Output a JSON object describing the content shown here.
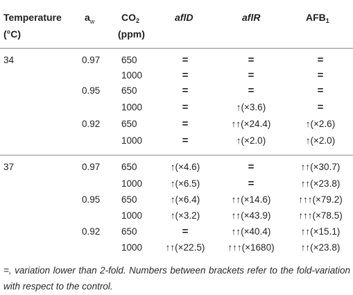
{
  "header": {
    "temperature_line1": "Temperature",
    "temperature_line2": "(°C)",
    "aw_main": "a",
    "aw_sub": "w",
    "co2_main": "CO",
    "co2_sub": "2",
    "co2_unit": "(ppm)",
    "afld": "aflD",
    "aflr": "aflR",
    "afb_main": "AFB",
    "afb_sub": "1"
  },
  "rows": [
    {
      "temp": "34",
      "aw": "0.97",
      "co2": "650",
      "afld": "=",
      "aflr": "=",
      "afb": "="
    },
    {
      "temp": "",
      "aw": "",
      "co2": "1000",
      "afld": "=",
      "aflr": "=",
      "afb": "="
    },
    {
      "temp": "",
      "aw": "0.95",
      "co2": "650",
      "afld": "=",
      "aflr": "=",
      "afb": "="
    },
    {
      "temp": "",
      "aw": "",
      "co2": "1000",
      "afld": "=",
      "aflr": "↑(×3.6)",
      "afb": "="
    },
    {
      "temp": "",
      "aw": "0.92",
      "co2": "650",
      "afld": "=",
      "aflr": "↑↑(×24.4)",
      "afb": "↑(×2.6)"
    },
    {
      "temp": "",
      "aw": "",
      "co2": "1000",
      "afld": "=",
      "aflr": "↑(×2.0)",
      "afb": "↑(×2.0)"
    },
    {
      "temp": "37",
      "aw": "0.97",
      "co2": "650",
      "afld": "↑(×4.6)",
      "aflr": "=",
      "afb": "↑↑(×30.7)"
    },
    {
      "temp": "",
      "aw": "",
      "co2": "1000",
      "afld": "↑(×6.5)",
      "aflr": "=",
      "afb": "↑↑(×23.8)"
    },
    {
      "temp": "",
      "aw": "0.95",
      "co2": "650",
      "afld": "↑(×6.4)",
      "aflr": "↑↑(×14.6)",
      "afb": "↑↑↑(×79.2)"
    },
    {
      "temp": "",
      "aw": "",
      "co2": "1000",
      "afld": "↑(×3.2)",
      "aflr": "↑↑(×43.9)",
      "afb": "↑↑↑(×78.5)"
    },
    {
      "temp": "",
      "aw": "0.92",
      "co2": "650",
      "afld": "=",
      "aflr": "↑↑(×40.4)",
      "afb": "↑↑(×15.1)"
    },
    {
      "temp": "",
      "aw": "",
      "co2": "1000",
      "afld": "↑↑(×22.5)",
      "aflr": "↑↑↑(×1680)",
      "afb": "↑↑(×23.8)"
    }
  ],
  "footnote": "=, variation lower than 2-fold. Numbers between brackets refer to the fold-variation with respect to the control."
}
